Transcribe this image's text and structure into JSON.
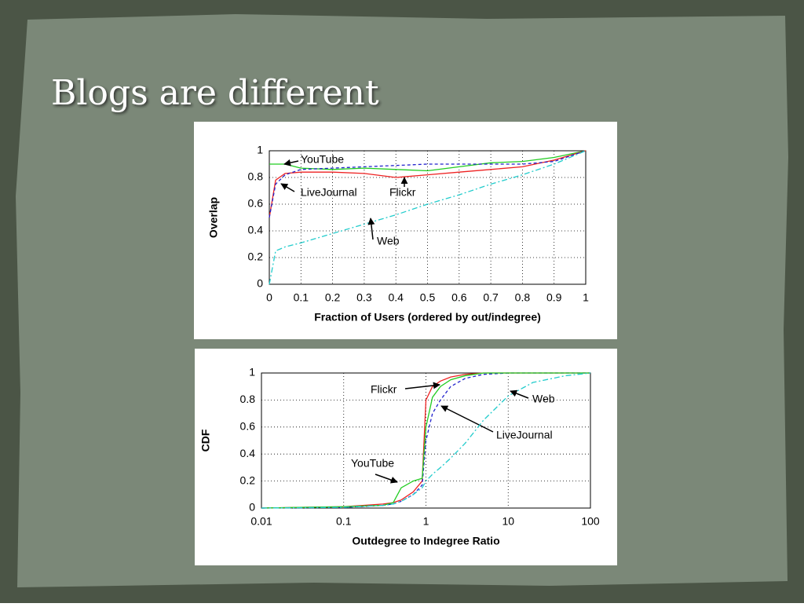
{
  "slide": {
    "title": "Blogs are different"
  },
  "chart_data": [
    {
      "type": "line",
      "xlabel": "Fraction of Users (ordered by out/indegree)",
      "ylabel": "Overlap",
      "x": [
        0,
        0.02,
        0.05,
        0.1,
        0.2,
        0.3,
        0.4,
        0.5,
        0.6,
        0.7,
        0.8,
        0.9,
        1
      ],
      "xlim": [
        0,
        1
      ],
      "xticks": [
        0,
        0.1,
        0.2,
        0.3,
        0.4,
        0.5,
        0.6,
        0.7,
        0.8,
        0.9,
        1
      ],
      "ylim": [
        0,
        1
      ],
      "yticks": [
        0,
        0.2,
        0.4,
        0.6,
        0.8,
        1
      ],
      "grid": true,
      "xscale": "linear",
      "series": [
        {
          "name": "YouTube",
          "color": "#22cc22",
          "style": "solid",
          "values": [
            0.9,
            0.9,
            0.9,
            0.87,
            0.86,
            0.87,
            0.86,
            0.85,
            0.88,
            0.91,
            0.92,
            0.95,
            1
          ]
        },
        {
          "name": "LiveJournal",
          "color": "#ee2222",
          "style": "solid",
          "values": [
            0.5,
            0.78,
            0.83,
            0.84,
            0.84,
            0.83,
            0.8,
            0.82,
            0.84,
            0.86,
            0.88,
            0.93,
            1
          ]
        },
        {
          "name": "Flickr",
          "color": "#2222cc",
          "style": "dashed",
          "values": [
            0.5,
            0.75,
            0.82,
            0.86,
            0.87,
            0.88,
            0.89,
            0.9,
            0.9,
            0.9,
            0.9,
            0.92,
            1
          ]
        },
        {
          "name": "Web",
          "color": "#22cccc",
          "style": "dashdot",
          "values": [
            0,
            0.25,
            0.28,
            0.31,
            0.38,
            0.45,
            0.52,
            0.6,
            0.67,
            0.75,
            0.82,
            0.9,
            1
          ]
        }
      ]
    },
    {
      "type": "line",
      "xlabel": "Outdegree to Indegree Ratio",
      "ylabel": "CDF",
      "x": [
        0.01,
        0.1,
        0.3,
        0.4,
        0.5,
        0.7,
        0.9,
        1,
        1.2,
        1.5,
        2,
        3,
        5,
        10,
        20,
        50,
        100
      ],
      "xlim": [
        0.01,
        100
      ],
      "xticks": [
        0.01,
        0.1,
        1,
        10,
        100
      ],
      "ylim": [
        0,
        1
      ],
      "yticks": [
        0,
        0.2,
        0.4,
        0.6,
        0.8,
        1
      ],
      "grid": true,
      "xscale": "log",
      "series": [
        {
          "name": "Flickr",
          "color": "#ee2222",
          "style": "solid",
          "values": [
            0,
            0.01,
            0.03,
            0.04,
            0.06,
            0.12,
            0.2,
            0.8,
            0.9,
            0.94,
            0.97,
            0.99,
            1,
            1,
            1,
            1,
            1
          ]
        },
        {
          "name": "LiveJournal",
          "color": "#2222cc",
          "style": "dashed",
          "values": [
            0,
            0.005,
            0.02,
            0.03,
            0.05,
            0.1,
            0.17,
            0.5,
            0.7,
            0.8,
            0.9,
            0.96,
            0.99,
            1,
            1,
            1,
            1
          ]
        },
        {
          "name": "YouTube",
          "color": "#22cc22",
          "style": "solid",
          "values": [
            0,
            0.01,
            0.02,
            0.04,
            0.15,
            0.2,
            0.22,
            0.6,
            0.82,
            0.9,
            0.95,
            0.98,
            1,
            1,
            1,
            1,
            1
          ]
        },
        {
          "name": "Web",
          "color": "#22cccc",
          "style": "dashdot",
          "values": [
            0,
            0.005,
            0.02,
            0.03,
            0.05,
            0.1,
            0.15,
            0.2,
            0.25,
            0.3,
            0.37,
            0.48,
            0.65,
            0.83,
            0.93,
            0.98,
            1
          ]
        }
      ]
    }
  ]
}
